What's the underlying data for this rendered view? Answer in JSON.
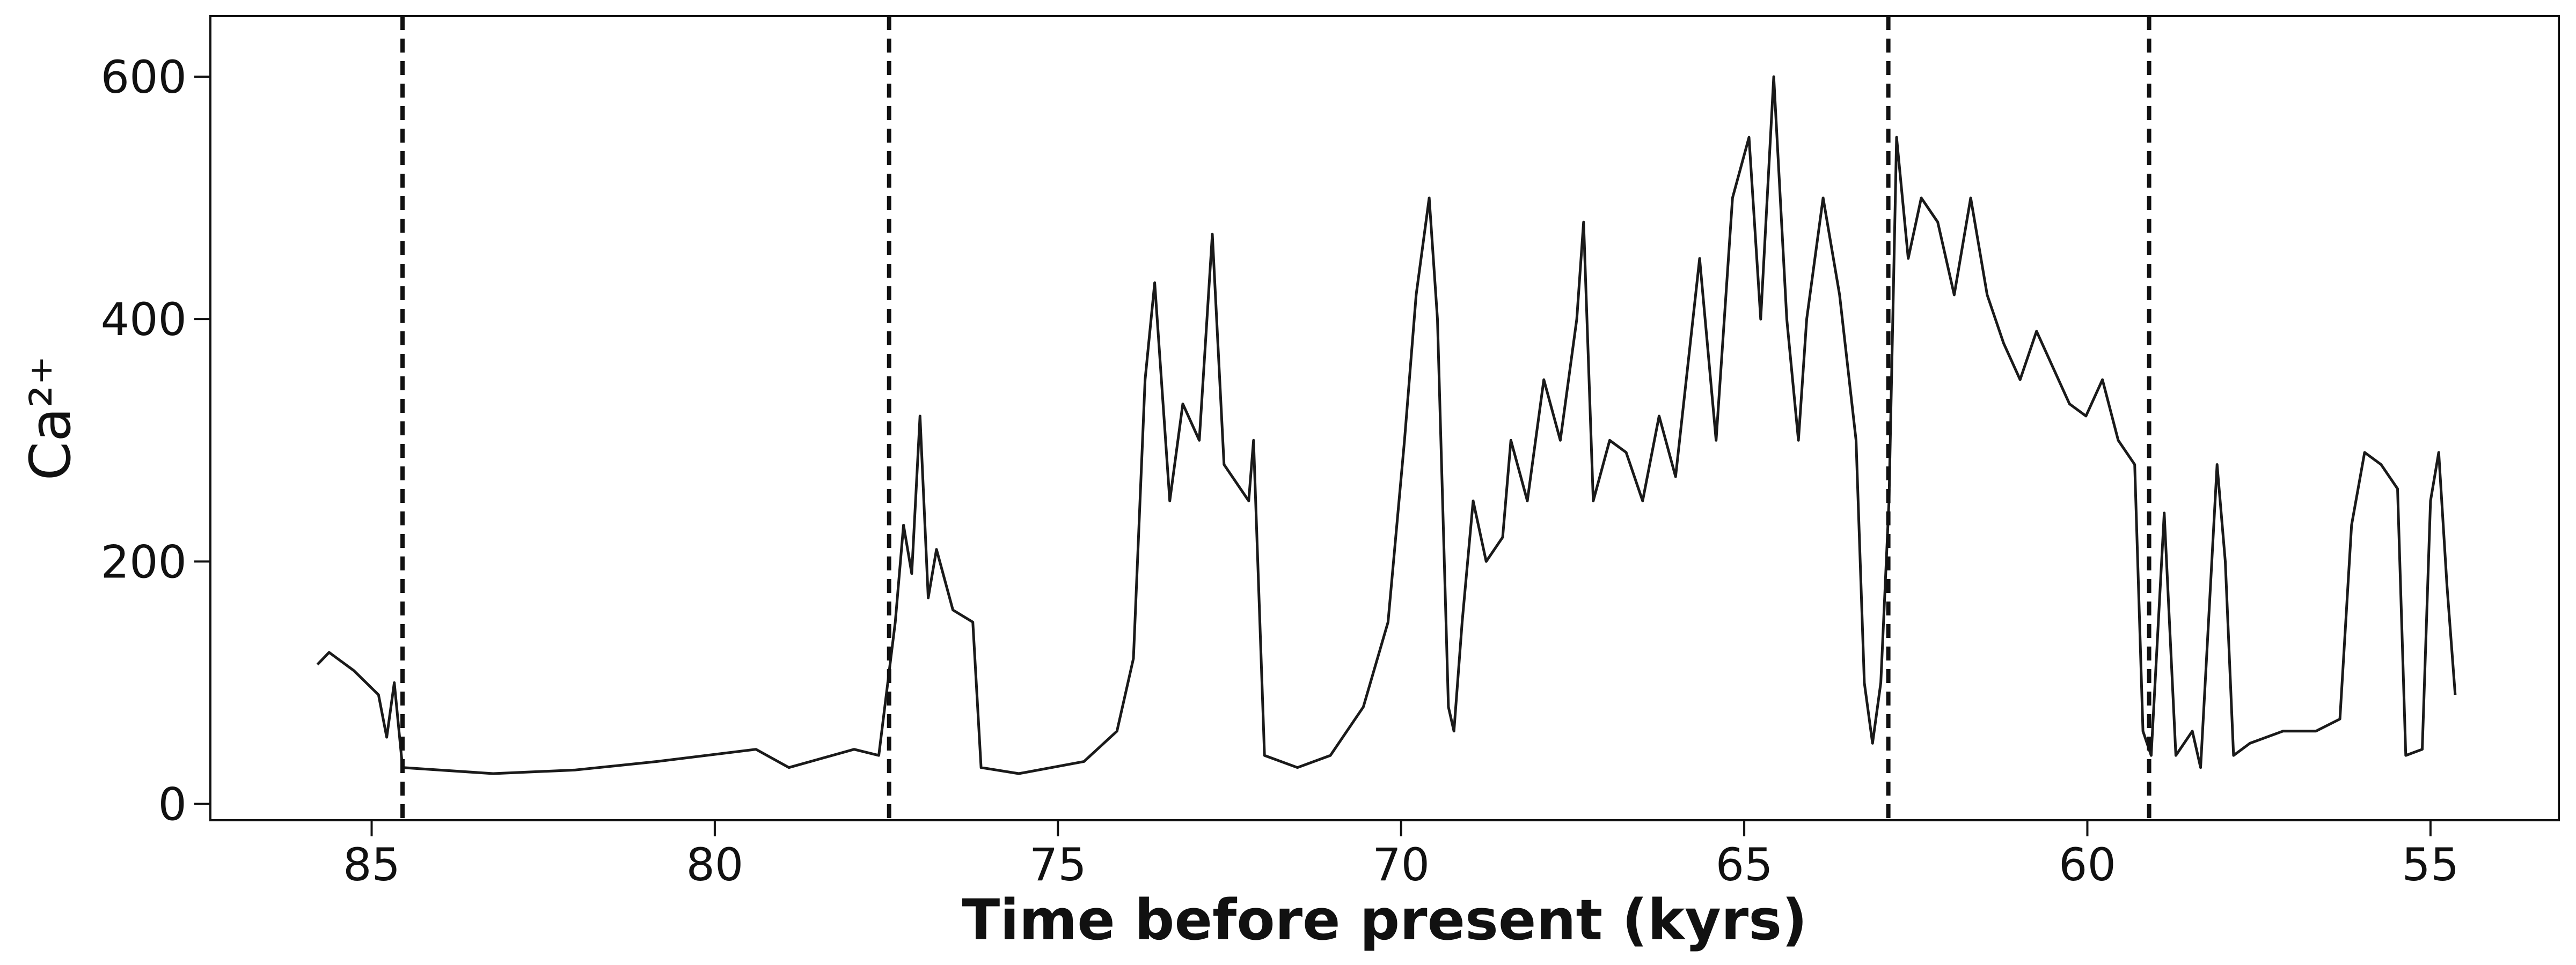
{
  "chart_data": {
    "type": "line",
    "xlabel": "Time before present (kyrs)",
    "ylabel": "Ca²⁺",
    "xlim": [
      87.35,
      53.13
    ],
    "ylim": [
      -13.5,
      650
    ],
    "xticks": [
      85,
      80,
      75,
      70,
      65,
      60,
      55
    ],
    "yticks": [
      0,
      200,
      400,
      600
    ],
    "grid": false,
    "vlines": [
      84.55,
      77.46,
      62.9,
      59.1
    ],
    "series": [
      {
        "color": "#1a1a1a",
        "x": [
          85.79,
          85.62,
          85.26,
          84.9,
          84.78,
          84.67,
          84.55,
          83.23,
          82.03,
          80.84,
          79.4,
          78.92,
          77.97,
          77.61,
          77.37,
          77.25,
          77.13,
          77.01,
          76.89,
          76.77,
          76.53,
          76.24,
          76.12,
          75.57,
          74.62,
          74.14,
          73.9,
          73.73,
          73.59,
          73.37,
          73.18,
          72.94,
          72.75,
          72.58,
          72.22,
          72.15,
          71.99,
          71.51,
          71.03,
          70.55,
          70.19,
          69.95,
          69.78,
          69.59,
          69.47,
          69.31,
          69.23,
          69.11,
          68.95,
          68.76,
          68.52,
          68.4,
          68.16,
          67.92,
          67.68,
          67.44,
          67.34,
          67.2,
          66.96,
          66.72,
          66.48,
          66.24,
          66.0,
          65.65,
          65.41,
          65.17,
          64.93,
          64.76,
          64.57,
          64.38,
          64.21,
          64.09,
          63.85,
          63.61,
          63.37,
          63.25,
          63.13,
          63.01,
          62.89,
          62.78,
          62.61,
          62.42,
          62.18,
          61.94,
          61.7,
          61.46,
          61.22,
          60.98,
          60.74,
          60.5,
          60.26,
          60.02,
          59.78,
          59.55,
          59.31,
          59.19,
          59.07,
          58.88,
          58.71,
          58.47,
          58.35,
          58.11,
          57.99,
          57.87,
          57.63,
          57.15,
          56.67,
          56.32,
          56.15,
          55.96,
          55.72,
          55.48,
          55.36,
          55.12,
          55.0,
          54.88,
          54.76,
          54.64
        ],
        "values": [
          115,
          125,
          110,
          90,
          55,
          100,
          30,
          25,
          28,
          35,
          45,
          30,
          45,
          40,
          150,
          230,
          190,
          320,
          170,
          210,
          160,
          150,
          30,
          25,
          35,
          60,
          120,
          350,
          430,
          250,
          330,
          300,
          470,
          280,
          250,
          300,
          40,
          30,
          40,
          80,
          150,
          300,
          420,
          500,
          400,
          80,
          60,
          150,
          250,
          200,
          220,
          300,
          250,
          350,
          300,
          400,
          480,
          250,
          300,
          290,
          250,
          320,
          270,
          450,
          300,
          500,
          550,
          400,
          600,
          400,
          300,
          400,
          500,
          420,
          300,
          100,
          50,
          100,
          250,
          550,
          450,
          500,
          480,
          420,
          500,
          420,
          380,
          350,
          390,
          360,
          330,
          320,
          350,
          300,
          280,
          60,
          40,
          240,
          40,
          60,
          30,
          280,
          200,
          40,
          50,
          60,
          60,
          70,
          230,
          290,
          280,
          260,
          40,
          45,
          250,
          290,
          180,
          90
        ]
      }
    ]
  }
}
